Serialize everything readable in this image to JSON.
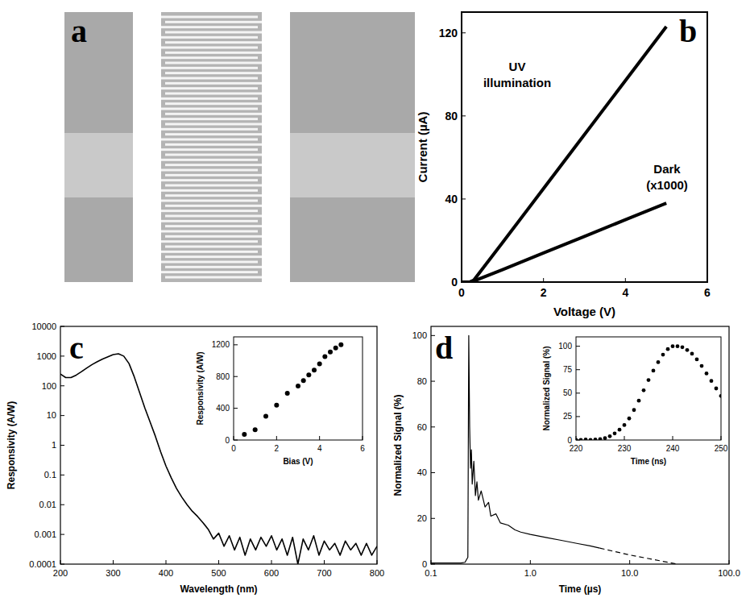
{
  "chart_data": [
    {
      "type": "image",
      "label": "a"
    },
    {
      "type": "line",
      "label": "b",
      "xlabel": "Voltage (V)",
      "ylabel": "Current (µA)",
      "xlim": [
        0,
        6
      ],
      "xticks": [
        0,
        2,
        4,
        6
      ],
      "ylim": [
        0,
        130
      ],
      "yticks": [
        0,
        40,
        80,
        120
      ],
      "series": [
        {
          "name": "UV illumination",
          "color": "#000000",
          "line_style": "solid",
          "x": [
            0,
            0.2,
            0.3,
            1,
            2,
            3,
            4,
            5
          ],
          "values": [
            0,
            0,
            1,
            19,
            45,
            71,
            97,
            123
          ]
        },
        {
          "name": "Dark (x1000)",
          "color": "#000000",
          "line_style": "solid",
          "x": [
            0,
            0.2,
            0.3,
            1,
            2,
            3,
            4,
            5
          ],
          "values": [
            0,
            0,
            0.5,
            6,
            14,
            22,
            30,
            38
          ]
        }
      ]
    },
    {
      "type": "line",
      "label": "c",
      "xlabel": "Wavelength (nm)",
      "ylabel": "Responsivity (A/W)",
      "log": "y",
      "xlim": [
        200,
        800
      ],
      "xticks": [
        200,
        300,
        400,
        500,
        600,
        700,
        800
      ],
      "ylim": [
        0.0001,
        10000
      ],
      "yticks": [
        0.0001,
        0.001,
        0.01,
        0.1,
        1,
        10,
        100,
        1000,
        10000
      ],
      "series": [
        {
          "color": "#000000",
          "line_style": "solid",
          "x": [
            200,
            210,
            220,
            230,
            240,
            250,
            260,
            270,
            280,
            290,
            300,
            310,
            320,
            330,
            340,
            350,
            360,
            370,
            380,
            390,
            400,
            410,
            420,
            430,
            440,
            450,
            460,
            470,
            480,
            490,
            500,
            510,
            520,
            530,
            540,
            550,
            560,
            570,
            580,
            590,
            600,
            610,
            620,
            630,
            640,
            650,
            660,
            670,
            680,
            690,
            700,
            710,
            720,
            730,
            740,
            750,
            760,
            770,
            780,
            790,
            800
          ],
          "values": [
            250,
            190,
            190,
            230,
            300,
            400,
            520,
            650,
            800,
            950,
            1120,
            1200,
            1000,
            560,
            200,
            60,
            18,
            6,
            2,
            0.6,
            0.2,
            0.08,
            0.035,
            0.018,
            0.01,
            0.006,
            0.004,
            0.0025,
            0.0015,
            0.0007,
            0.0011,
            0.0004,
            0.0009,
            0.0003,
            0.0008,
            0.0002,
            0.0007,
            0.0003,
            0.0008,
            0.0004,
            0.0009,
            0.0003,
            0.0007,
            0.0002,
            0.0008,
            0.0001,
            0.0007,
            0.0003,
            0.0009,
            0.0002,
            0.0006,
            0.0003,
            0.0005,
            0.0002,
            0.0006,
            0.0003,
            0.0005,
            0.0002,
            0.0005,
            0.0002,
            0.0004
          ]
        }
      ],
      "inset": {
        "type": "scatter",
        "xlabel": "Bias (V)",
        "ylabel": "Responsivity (A/W)",
        "xlim": [
          0,
          6
        ],
        "xticks": [
          0,
          2,
          4,
          6
        ],
        "ylim": [
          0,
          1300
        ],
        "yticks": [
          0,
          400,
          800,
          1200
        ],
        "series": [
          {
            "color": "#000000",
            "marker": "circle",
            "x": [
              0.5,
              1,
              1.5,
              2,
              2.5,
              3,
              3.25,
              3.5,
              3.75,
              4,
              4.25,
              4.5,
              4.75,
              5
            ],
            "values": [
              70,
              130,
              300,
              440,
              590,
              680,
              750,
              820,
              880,
              960,
              1050,
              1110,
              1160,
              1200
            ]
          }
        ]
      }
    },
    {
      "type": "line",
      "label": "d",
      "xlabel": "Time (µs)",
      "ylabel": "Normalized Signal (%)",
      "log": "x",
      "xlim": [
        0.1,
        100
      ],
      "xticks": [
        0.1,
        {
          "value": 1,
          "label": "1.0"
        },
        {
          "value": 10,
          "label": "10.0"
        },
        {
          "value": 100,
          "label": "100.0"
        }
      ],
      "ylim": [
        0,
        104
      ],
      "yticks": [
        0,
        20,
        40,
        60,
        80,
        100
      ],
      "series": [
        {
          "color": "#000000",
          "line_style": "solid",
          "x": [
            0.1,
            0.15,
            0.2,
            0.22,
            0.235,
            0.24,
            0.245,
            0.25,
            0.255,
            0.26,
            0.27,
            0.28,
            0.29,
            0.3,
            0.32,
            0.35,
            0.38,
            0.4,
            0.45,
            0.5,
            0.6,
            0.7,
            0.8,
            1,
            1.5,
            2,
            3,
            4,
            5
          ],
          "values": [
            0.5,
            0.5,
            0.5,
            0.8,
            3,
            100,
            60,
            42,
            50,
            35,
            45,
            30,
            36,
            28,
            32,
            25,
            27,
            21,
            22,
            18,
            17,
            15,
            14,
            13,
            11.5,
            10.5,
            9,
            8,
            7
          ]
        },
        {
          "color": "#000000",
          "line_style": "dashed",
          "x": [
            5,
            10,
            20,
            30
          ],
          "values": [
            7,
            4,
            1.5,
            0
          ]
        }
      ],
      "inset": {
        "type": "scatter",
        "xlabel": "Time (ns)",
        "ylabel": "Normalized Signal (%)",
        "xlim": [
          220,
          250
        ],
        "xticks": [
          220,
          230,
          240,
          250
        ],
        "ylim": [
          0,
          110
        ],
        "yticks": [
          0,
          25,
          50,
          75,
          100
        ],
        "series": [
          {
            "color": "#000000",
            "marker": "circle",
            "x": [
              220,
              221,
              222,
              223,
              224,
              225,
              226,
              227,
              228,
              229,
              230,
              231,
              232,
              233,
              234,
              235,
              236,
              237,
              238,
              239,
              240,
              241,
              242,
              243,
              244,
              245,
              246,
              247,
              248,
              249,
              250
            ],
            "values": [
              0,
              0,
              0.5,
              0,
              0.5,
              1,
              2,
              4,
              7,
              11,
              16,
              23,
              32,
              42,
              53,
              64,
              74,
              83,
              91,
              97,
              100,
              100,
              99,
              96,
              92,
              86,
              79,
              71,
              63,
              55,
              47
            ]
          }
        ]
      }
    }
  ]
}
